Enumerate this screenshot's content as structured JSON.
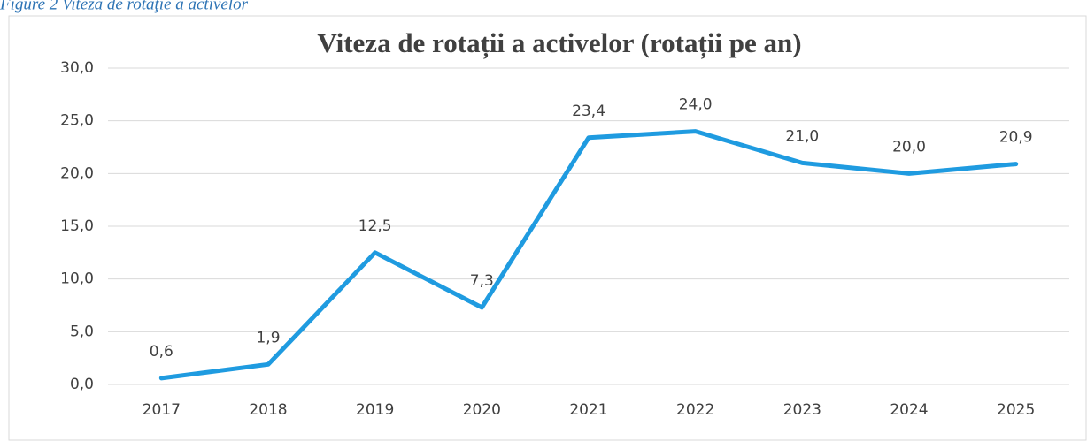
{
  "caption": "Figure 2 Viteza de rotaţie a activelor",
  "chart_data": {
    "type": "line",
    "title": "Viteza de rotații a activelor (rotații pe an)",
    "categories": [
      "2017",
      "2018",
      "2019",
      "2020",
      "2021",
      "2022",
      "2023",
      "2024",
      "2025"
    ],
    "values": [
      0.6,
      1.9,
      12.5,
      7.3,
      23.4,
      24.0,
      21.0,
      20.0,
      20.9
    ],
    "value_labels": [
      "0,6",
      "1,9",
      "12,5",
      "7,3",
      "23,4",
      "24,0",
      "21,0",
      "20,0",
      "20,9"
    ],
    "color": "#1f9be0",
    "ylim": [
      0,
      30
    ],
    "yticks": [
      {
        "value": 0,
        "label": "0,0"
      },
      {
        "value": 5,
        "label": "5,0"
      },
      {
        "value": 10,
        "label": "10,0"
      },
      {
        "value": 15,
        "label": "15,0"
      },
      {
        "value": 20,
        "label": "20,0"
      },
      {
        "value": 25,
        "label": "25,0"
      },
      {
        "value": 30,
        "label": "30,0"
      }
    ],
    "grid": true
  }
}
